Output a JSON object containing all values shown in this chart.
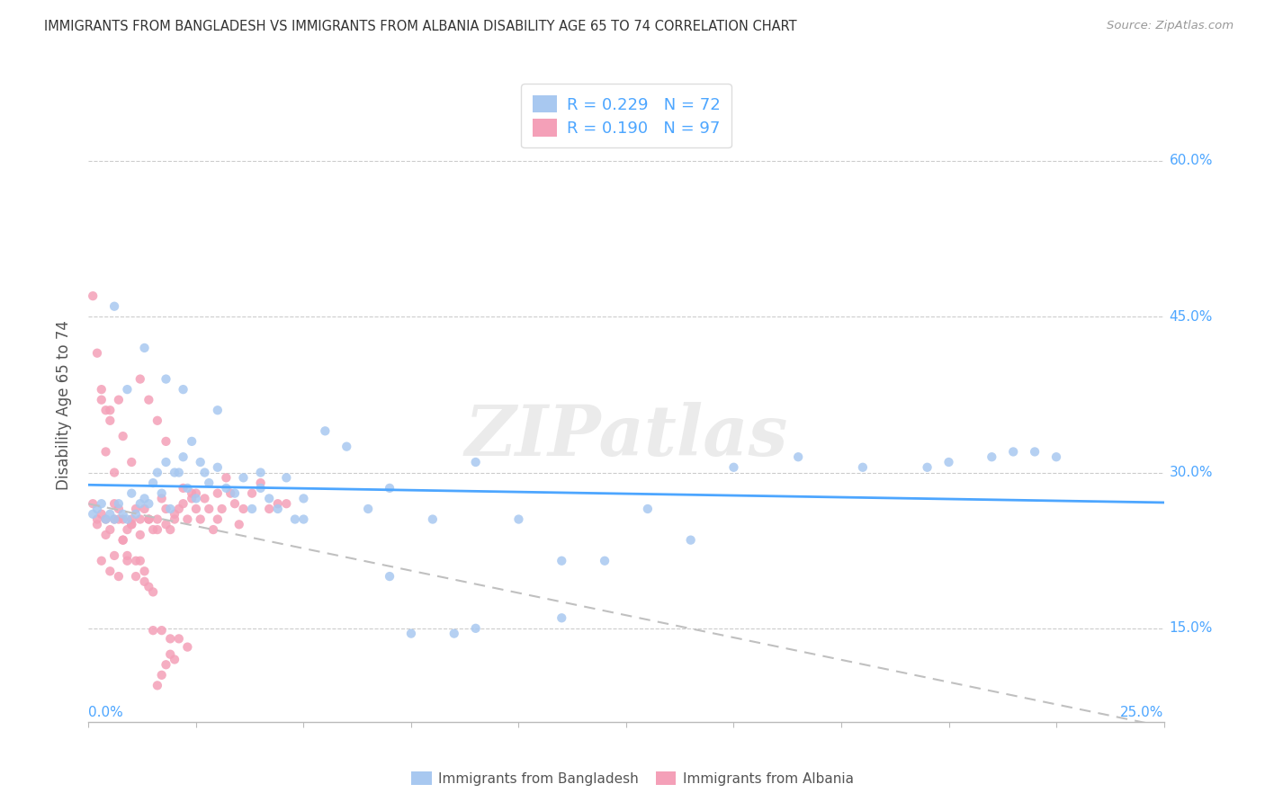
{
  "title": "IMMIGRANTS FROM BANGLADESH VS IMMIGRANTS FROM ALBANIA DISABILITY AGE 65 TO 74 CORRELATION CHART",
  "source": "Source: ZipAtlas.com",
  "ylabel": "Disability Age 65 to 74",
  "yticks": [
    "15.0%",
    "30.0%",
    "45.0%",
    "60.0%"
  ],
  "ytick_vals": [
    0.15,
    0.3,
    0.45,
    0.6
  ],
  "xlim": [
    0.0,
    0.25
  ],
  "ylim": [
    0.06,
    0.67
  ],
  "bangladesh_color": "#a8c8f0",
  "albania_color": "#f4a0b8",
  "trendline_bangladesh_color": "#4da6ff",
  "trendline_albania_color": "#c0c0c0",
  "bangladesh_R": 0.229,
  "bangladesh_N": 72,
  "albania_R": 0.19,
  "albania_N": 97,
  "watermark": "ZIPatlas",
  "bangladesh_x": [
    0.001,
    0.002,
    0.003,
    0.004,
    0.005,
    0.006,
    0.007,
    0.008,
    0.009,
    0.01,
    0.011,
    0.012,
    0.013,
    0.014,
    0.015,
    0.016,
    0.017,
    0.018,
    0.019,
    0.02,
    0.021,
    0.022,
    0.023,
    0.024,
    0.025,
    0.026,
    0.027,
    0.028,
    0.03,
    0.032,
    0.034,
    0.036,
    0.038,
    0.04,
    0.042,
    0.044,
    0.046,
    0.048,
    0.05,
    0.055,
    0.06,
    0.065,
    0.07,
    0.075,
    0.08,
    0.085,
    0.09,
    0.1,
    0.11,
    0.12,
    0.13,
    0.14,
    0.15,
    0.165,
    0.18,
    0.195,
    0.21,
    0.215,
    0.22,
    0.225,
    0.006,
    0.009,
    0.013,
    0.018,
    0.022,
    0.03,
    0.04,
    0.05,
    0.07,
    0.09,
    0.11,
    0.2
  ],
  "bangladesh_y": [
    0.26,
    0.265,
    0.27,
    0.255,
    0.26,
    0.255,
    0.27,
    0.26,
    0.255,
    0.28,
    0.26,
    0.27,
    0.275,
    0.27,
    0.29,
    0.3,
    0.28,
    0.31,
    0.265,
    0.3,
    0.3,
    0.315,
    0.285,
    0.33,
    0.275,
    0.31,
    0.3,
    0.29,
    0.305,
    0.285,
    0.28,
    0.295,
    0.265,
    0.285,
    0.275,
    0.265,
    0.295,
    0.255,
    0.275,
    0.34,
    0.325,
    0.265,
    0.285,
    0.145,
    0.255,
    0.145,
    0.15,
    0.255,
    0.16,
    0.215,
    0.265,
    0.235,
    0.305,
    0.315,
    0.305,
    0.305,
    0.315,
    0.32,
    0.32,
    0.315,
    0.46,
    0.38,
    0.42,
    0.39,
    0.38,
    0.36,
    0.3,
    0.255,
    0.2,
    0.31,
    0.215,
    0.31
  ],
  "albania_x": [
    0.001,
    0.002,
    0.003,
    0.004,
    0.005,
    0.006,
    0.007,
    0.008,
    0.009,
    0.01,
    0.011,
    0.012,
    0.013,
    0.014,
    0.015,
    0.016,
    0.017,
    0.018,
    0.019,
    0.02,
    0.021,
    0.022,
    0.023,
    0.024,
    0.025,
    0.026,
    0.027,
    0.028,
    0.029,
    0.03,
    0.031,
    0.032,
    0.033,
    0.034,
    0.035,
    0.036,
    0.038,
    0.04,
    0.042,
    0.044,
    0.046,
    0.003,
    0.005,
    0.007,
    0.009,
    0.011,
    0.013,
    0.015,
    0.017,
    0.019,
    0.021,
    0.023,
    0.004,
    0.006,
    0.008,
    0.01,
    0.012,
    0.014,
    0.016,
    0.018,
    0.002,
    0.004,
    0.006,
    0.008,
    0.01,
    0.012,
    0.014,
    0.016,
    0.018,
    0.02,
    0.022,
    0.024,
    0.003,
    0.005,
    0.007,
    0.001,
    0.002,
    0.003,
    0.004,
    0.005,
    0.006,
    0.007,
    0.008,
    0.009,
    0.01,
    0.011,
    0.012,
    0.013,
    0.014,
    0.015,
    0.016,
    0.017,
    0.018,
    0.019,
    0.02,
    0.025,
    0.03
  ],
  "albania_y": [
    0.27,
    0.255,
    0.26,
    0.255,
    0.245,
    0.255,
    0.265,
    0.255,
    0.245,
    0.25,
    0.265,
    0.255,
    0.265,
    0.255,
    0.245,
    0.255,
    0.275,
    0.265,
    0.245,
    0.255,
    0.265,
    0.285,
    0.255,
    0.275,
    0.265,
    0.255,
    0.275,
    0.265,
    0.245,
    0.255,
    0.265,
    0.295,
    0.28,
    0.27,
    0.25,
    0.265,
    0.28,
    0.29,
    0.265,
    0.27,
    0.27,
    0.215,
    0.205,
    0.2,
    0.22,
    0.215,
    0.205,
    0.148,
    0.148,
    0.14,
    0.14,
    0.132,
    0.32,
    0.3,
    0.335,
    0.31,
    0.39,
    0.37,
    0.35,
    0.33,
    0.25,
    0.24,
    0.22,
    0.235,
    0.255,
    0.24,
    0.255,
    0.245,
    0.25,
    0.26,
    0.27,
    0.28,
    0.38,
    0.36,
    0.37,
    0.47,
    0.415,
    0.37,
    0.36,
    0.35,
    0.27,
    0.255,
    0.235,
    0.215,
    0.25,
    0.2,
    0.215,
    0.195,
    0.19,
    0.185,
    0.095,
    0.105,
    0.115,
    0.125,
    0.12,
    0.28,
    0.28
  ]
}
